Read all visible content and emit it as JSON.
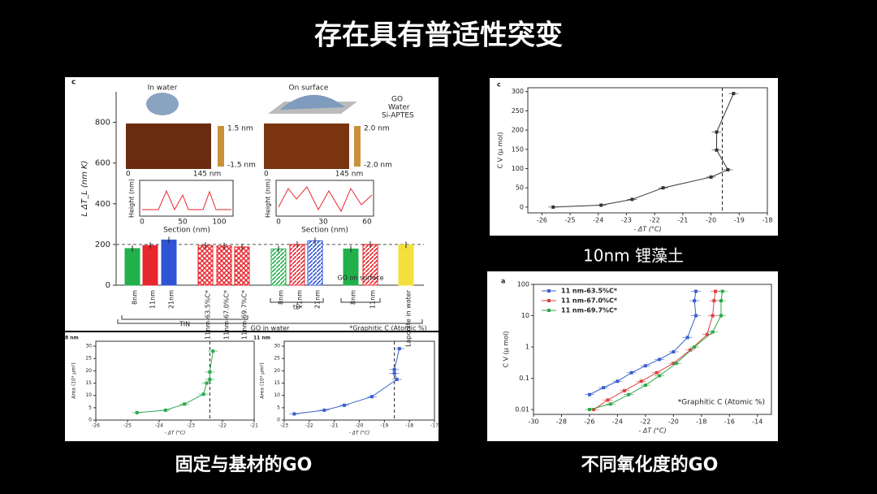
{
  "slide": {
    "title": "存在具有普适性突变",
    "captions": [
      "固定与基材的GO",
      "10nm 锂藻土",
      "不同氧化度的GO"
    ],
    "insets": [
      "In water",
      "On surface",
      "GO",
      "Water",
      "Si-APTES",
      "1.5 nm",
      "-1.5 nm",
      "2.0 nm",
      "-2.0 nm",
      "0",
      "145 nm",
      "0",
      "145 nm",
      "Height (nm)",
      "Height (nm)",
      "Section (nm)",
      "Section (nm)",
      "0",
      "50",
      "100",
      "0",
      "30",
      "60"
    ]
  },
  "chart_data": [
    {
      "type": "bar",
      "panel_label": "c",
      "ylabel": "L ΔT_L (nm K)",
      "ylim": [
        0,
        950
      ],
      "yticks": [
        0,
        200,
        400,
        600,
        800
      ],
      "reference": 200,
      "categories": [
        "8nm",
        "11nm",
        "21nm",
        "11nm-63.5%C*",
        "11nm-67.0%C*",
        "11nm-69.7%C*",
        "8nm",
        "11nm",
        "21nm",
        "8nm",
        "11nm",
        "Laponite in water"
      ],
      "values": [
        180,
        195,
        222,
        195,
        193,
        188,
        178,
        200,
        218,
        178,
        200,
        198
      ],
      "colors": [
        "#22b04b",
        "#e8262d",
        "#2f55d4",
        "#e8262d",
        "#e8262d",
        "#e8262d",
        "#22b04b",
        "#e8262d",
        "#2f55d4",
        "#22b04b",
        "#e8262d",
        "#f3e03c"
      ],
      "patterns": [
        "solid",
        "solid",
        "solid",
        "cross",
        "cross",
        "cross",
        "diag",
        "diag",
        "diag",
        "solid",
        "diag",
        "solid"
      ],
      "group_labels": [
        "TIN",
        "tD",
        "GO on surface",
        "GO in water"
      ],
      "annotation": "*Graphitic C (Atomic %)"
    },
    {
      "type": "line",
      "panel_label": "c",
      "xlabel": "- ΔT (°C)",
      "ylabel": "C V (μ mol)",
      "xlim": [
        -26.5,
        -18
      ],
      "xticks": [
        -26,
        -25,
        -24,
        -23,
        -22,
        -21,
        -20,
        -19,
        -18
      ],
      "ylim": [
        -15,
        310
      ],
      "yticks": [
        0,
        50,
        100,
        150,
        200,
        250,
        300
      ],
      "vline": -19.6,
      "series": [
        {
          "color": "#333",
          "x": [
            -25.6,
            -23.9,
            -22.8,
            -21.7,
            -20,
            -19.4,
            -19.8,
            -19.8,
            -19.2
          ],
          "values": [
            0,
            5,
            20,
            50,
            78,
            97,
            148,
            195,
            295
          ]
        }
      ]
    },
    {
      "type": "line",
      "panel_label": "a",
      "xlabel": "- ΔT (°C)",
      "ylabel": "C V (μ mol)",
      "log_y": true,
      "xlim": [
        -30,
        -13
      ],
      "xticks": [
        -30,
        -28,
        -26,
        -24,
        -22,
        -20,
        -18,
        -16,
        -14
      ],
      "ylim": [
        0.007,
        100
      ],
      "yticks": [
        0.01,
        0.1,
        1,
        10,
        100
      ],
      "legend": "top-left",
      "annotation": "*Graphitic C (Atomic %)",
      "series": [
        {
          "name": "11 nm-63.5%C*",
          "color": "#3a5fcd",
          "x": [
            -26,
            -25,
            -24,
            -23,
            -22,
            -21,
            -20,
            -19,
            -18.4,
            -18.5,
            -18.4
          ],
          "values": [
            0.03,
            0.05,
            0.08,
            0.15,
            0.25,
            0.4,
            0.7,
            2,
            10,
            30,
            60
          ]
        },
        {
          "name": "11 nm-67.0%C*",
          "color": "#e04040",
          "x": [
            -25.7,
            -24.7,
            -23.5,
            -22.3,
            -21.2,
            -20,
            -18.8,
            -17.6,
            -17.2,
            -17.1,
            -17
          ],
          "values": [
            0.01,
            0.02,
            0.04,
            0.08,
            0.15,
            0.3,
            0.8,
            2.5,
            10,
            30,
            60
          ]
        },
        {
          "name": "11 nm-69.7%C*",
          "color": "#2ea84f",
          "x": [
            -26,
            -24.5,
            -23.2,
            -22,
            -21,
            -19.8,
            -18.5,
            -17.2,
            -16.6,
            -16.6,
            -16.5
          ],
          "values": [
            0.01,
            0.015,
            0.03,
            0.06,
            0.12,
            0.3,
            1,
            3,
            10,
            30,
            60
          ]
        }
      ]
    },
    {
      "type": "line",
      "panel_label": "8 nm",
      "xlabel": "- ΔT (°C)",
      "ylabel": "Area (10³ μm²)",
      "xlim": [
        -26,
        -21
      ],
      "xticks": [
        -26,
        -25,
        -24,
        -23,
        -22,
        -21
      ],
      "ylim": [
        0,
        32
      ],
      "yticks": [
        0,
        5,
        10,
        15,
        20,
        25,
        30
      ],
      "vline": -22.4,
      "series": [
        {
          "color": "#2ea84f",
          "x": [
            -24.7,
            -23.8,
            -23.2,
            -22.6,
            -22.5,
            -22.4,
            -22.4,
            -22.3
          ],
          "values": [
            3,
            4,
            6.5,
            10.5,
            15,
            16.5,
            19.5,
            28
          ]
        }
      ]
    },
    {
      "type": "line",
      "panel_label": "11 nm",
      "xlabel": "- ΔT (°C)",
      "ylabel": "Area (10³ μm²)",
      "xlim": [
        -23,
        -17
      ],
      "xticks": [
        -23,
        -22,
        -21,
        -20,
        -19,
        -18,
        -17
      ],
      "ylim": [
        0,
        32
      ],
      "yticks": [
        0,
        5,
        10,
        15,
        20,
        25,
        30
      ],
      "vline": -18.6,
      "series": [
        {
          "color": "#3a5fcd",
          "x": [
            -22.6,
            -21.4,
            -20.6,
            -19.5,
            -18.5,
            -18.6,
            -18.6,
            -18.4
          ],
          "values": [
            2.5,
            4,
            6,
            9.5,
            16.5,
            19,
            20.5,
            29
          ]
        }
      ]
    }
  ]
}
